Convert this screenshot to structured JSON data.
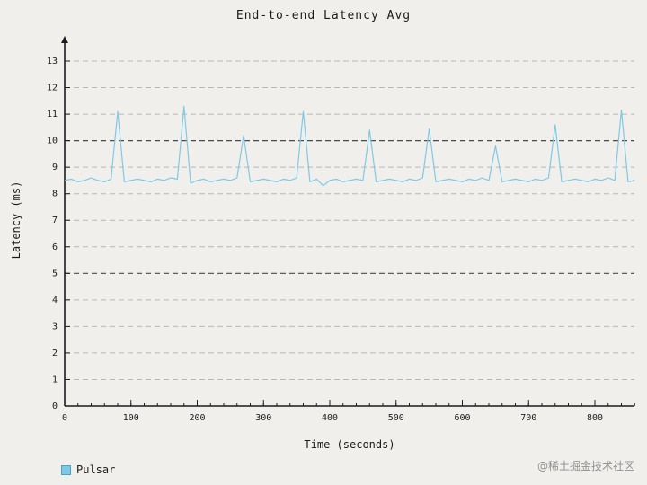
{
  "title": "End-to-end Latency Avg",
  "xlabel": "Time (seconds)",
  "ylabel": "Latency (ms)",
  "legend": {
    "label": "Pulsar",
    "color": "#7fc9e4",
    "border_color": "#4aa3c4"
  },
  "watermark": "@稀土掘金技术社区",
  "colors": {
    "background": "#f1efec",
    "grid_light": "#b8b8b8",
    "grid_dark": "#4a4a4a",
    "axis": "#1c1c1c"
  },
  "chart_data": {
    "type": "line",
    "title": "End-to-end Latency Avg",
    "xlabel": "Time (seconds)",
    "ylabel": "Latency (ms)",
    "xlim": [
      0,
      860
    ],
    "ylim": [
      0,
      13
    ],
    "xticks": [
      0,
      100,
      200,
      300,
      400,
      500,
      600,
      700,
      800
    ],
    "yticks": [
      0,
      1,
      2,
      3,
      4,
      5,
      6,
      7,
      8,
      9,
      10,
      11,
      12,
      13
    ],
    "minor_xtick_step": 20,
    "grid": true,
    "emphasized_gridlines": [
      5,
      10
    ],
    "legend_position": "bottom-left",
    "series": [
      {
        "name": "Pulsar",
        "color": "#7fc9e4",
        "points": [
          [
            0,
            8.5
          ],
          [
            10,
            8.55
          ],
          [
            20,
            8.45
          ],
          [
            30,
            8.5
          ],
          [
            40,
            8.6
          ],
          [
            50,
            8.5
          ],
          [
            60,
            8.45
          ],
          [
            70,
            8.55
          ],
          [
            80,
            11.1
          ],
          [
            90,
            8.45
          ],
          [
            100,
            8.5
          ],
          [
            110,
            8.55
          ],
          [
            120,
            8.5
          ],
          [
            130,
            8.45
          ],
          [
            140,
            8.55
          ],
          [
            150,
            8.5
          ],
          [
            160,
            8.6
          ],
          [
            170,
            8.55
          ],
          [
            180,
            11.3
          ],
          [
            190,
            8.4
          ],
          [
            200,
            8.5
          ],
          [
            210,
            8.55
          ],
          [
            220,
            8.45
          ],
          [
            230,
            8.5
          ],
          [
            240,
            8.55
          ],
          [
            250,
            8.5
          ],
          [
            260,
            8.6
          ],
          [
            270,
            10.2
          ],
          [
            280,
            8.45
          ],
          [
            290,
            8.5
          ],
          [
            300,
            8.55
          ],
          [
            310,
            8.5
          ],
          [
            320,
            8.45
          ],
          [
            330,
            8.55
          ],
          [
            340,
            8.5
          ],
          [
            350,
            8.6
          ],
          [
            360,
            11.1
          ],
          [
            370,
            8.45
          ],
          [
            380,
            8.55
          ],
          [
            390,
            8.3
          ],
          [
            400,
            8.5
          ],
          [
            410,
            8.55
          ],
          [
            420,
            8.45
          ],
          [
            430,
            8.5
          ],
          [
            440,
            8.55
          ],
          [
            450,
            8.5
          ],
          [
            460,
            10.4
          ],
          [
            470,
            8.45
          ],
          [
            480,
            8.5
          ],
          [
            490,
            8.55
          ],
          [
            500,
            8.5
          ],
          [
            510,
            8.45
          ],
          [
            520,
            8.55
          ],
          [
            530,
            8.5
          ],
          [
            540,
            8.6
          ],
          [
            550,
            10.45
          ],
          [
            560,
            8.45
          ],
          [
            570,
            8.5
          ],
          [
            580,
            8.55
          ],
          [
            590,
            8.5
          ],
          [
            600,
            8.45
          ],
          [
            610,
            8.55
          ],
          [
            620,
            8.5
          ],
          [
            630,
            8.6
          ],
          [
            640,
            8.5
          ],
          [
            650,
            9.8
          ],
          [
            660,
            8.45
          ],
          [
            670,
            8.5
          ],
          [
            680,
            8.55
          ],
          [
            690,
            8.5
          ],
          [
            700,
            8.45
          ],
          [
            710,
            8.55
          ],
          [
            720,
            8.5
          ],
          [
            730,
            8.6
          ],
          [
            740,
            10.6
          ],
          [
            750,
            8.45
          ],
          [
            760,
            8.5
          ],
          [
            770,
            8.55
          ],
          [
            780,
            8.5
          ],
          [
            790,
            8.45
          ],
          [
            800,
            8.55
          ],
          [
            810,
            8.5
          ],
          [
            820,
            8.6
          ],
          [
            830,
            8.5
          ],
          [
            840,
            11.15
          ],
          [
            850,
            8.45
          ],
          [
            860,
            8.5
          ]
        ]
      }
    ]
  }
}
